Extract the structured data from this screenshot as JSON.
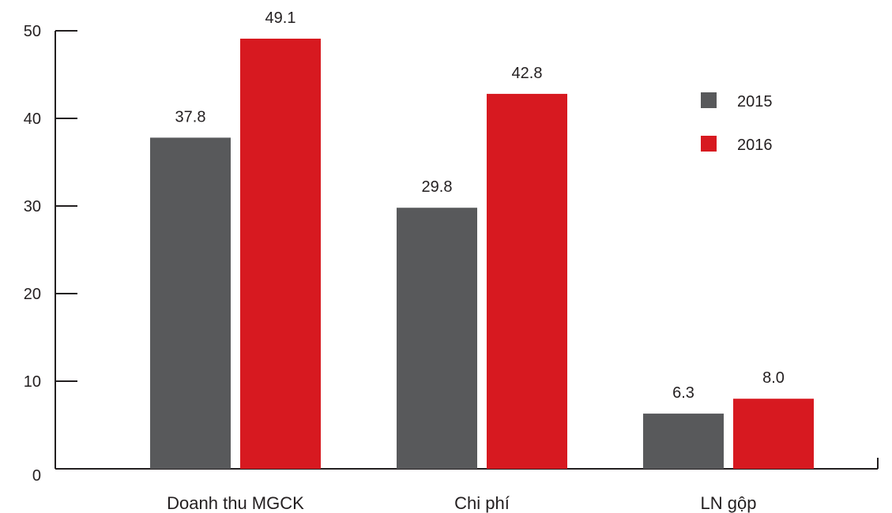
{
  "chart_data": {
    "type": "bar",
    "categories": [
      "Doanh thu MGCK",
      "Chi phí",
      "LN gộp"
    ],
    "series": [
      {
        "name": "2015",
        "values": [
          37.8,
          29.8,
          6.3
        ],
        "labels": [
          "37.8",
          "29.8",
          "6.3"
        ],
        "color": "#58595b"
      },
      {
        "name": "2016",
        "values": [
          49.1,
          42.8,
          8.0
        ],
        "labels": [
          "49.1",
          "42.8",
          "8.0"
        ],
        "color": "#d71920"
      }
    ],
    "yticks": [
      "0",
      "10",
      "20",
      "30",
      "40",
      "50"
    ],
    "ylim": [
      0,
      50
    ],
    "grid": false,
    "legend_position": "top-right",
    "title": "",
    "xlabel": "",
    "ylabel": ""
  }
}
